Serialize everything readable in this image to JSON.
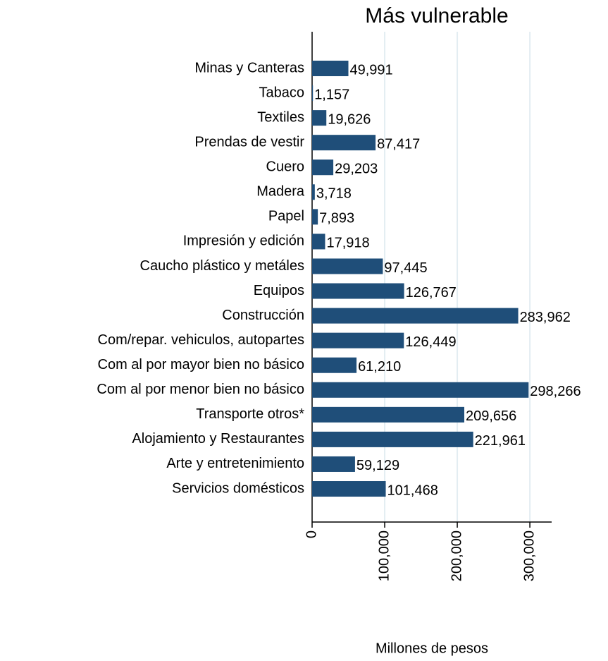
{
  "chart_data": {
    "type": "barh",
    "title": "Más vulnerable",
    "x_label": "Millones de pesos",
    "categories": [
      "Minas y Canteras",
      "Tabaco",
      "Textiles",
      "Prendas de vestir",
      "Cuero",
      "Madera",
      "Papel",
      "Impresión y edición",
      "Caucho plástico y metáles",
      "Equipos",
      "Construcción",
      "Com/repar. vehiculos, autopartes",
      "Com al por mayor bien no básico",
      "Com al por menor bien no básico",
      "Transporte otros*",
      "Alojamiento y Restaurantes",
      "Arte y entretenimiento",
      "Servicios domésticos"
    ],
    "values": [
      49991,
      1157,
      19626,
      87417,
      29203,
      3718,
      7893,
      17918,
      97445,
      126767,
      283962,
      126449,
      61210,
      298266,
      209656,
      221961,
      59129,
      101468
    ],
    "value_labels": [
      "49,991",
      "1,157",
      "19,626",
      "87,417",
      "29,203",
      "3,718",
      "7,893",
      "17,918",
      "97,445",
      "126,767",
      "283,962",
      "126,449",
      "61,210",
      "298,266",
      "209,656",
      "221,961",
      "59,129",
      "101,468"
    ],
    "color": "#1f4e79",
    "xlim": [
      0,
      330000
    ],
    "xticks": [
      0,
      {
        "value": 100000,
        "label": "100,000"
      },
      {
        "value": 200000,
        "label": "200,000"
      },
      {
        "value": 300000,
        "label": "300,000"
      }
    ],
    "grid": true
  }
}
